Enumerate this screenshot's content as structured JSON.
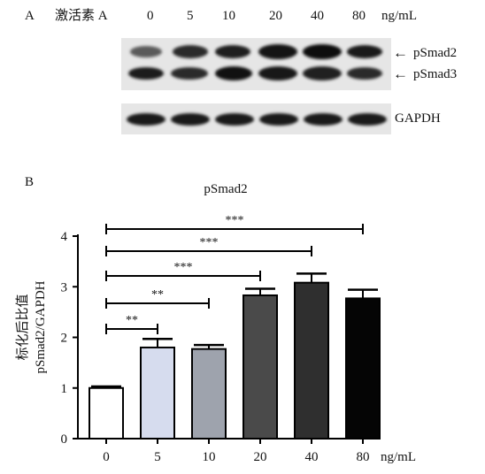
{
  "panel_a": {
    "label": "A",
    "treatment": "激活素 A",
    "conc_labels": [
      "0",
      "5",
      "10",
      "20",
      "40",
      "80"
    ],
    "unit": "ng/mL",
    "band_labels": {
      "top": "pSmad2",
      "middle": "pSmad3",
      "bottom": "GAPDH"
    },
    "arrow_glyph": "←"
  },
  "panel_b": {
    "label": "B"
  },
  "chart_data": {
    "type": "bar",
    "title": "pSmad2",
    "xlabel": "",
    "x_unit": "ng/mL",
    "ylabel_line1": "标化后比值",
    "ylabel_line2": "pSmad2/GAPDH",
    "categories": [
      "0",
      "5",
      "10",
      "20",
      "40",
      "80"
    ],
    "values": [
      1.0,
      1.8,
      1.77,
      2.83,
      3.08,
      2.77
    ],
    "errors": [
      0.03,
      0.17,
      0.08,
      0.13,
      0.18,
      0.17
    ],
    "bar_colors": [
      "#ffffff",
      "#d6dcee",
      "#9ea3ad",
      "#4a4a4a",
      "#2f2f2f",
      "#050505"
    ],
    "ylim": [
      0,
      4
    ],
    "yticks": [
      "0",
      "1",
      "2",
      "3",
      "4"
    ],
    "significance": [
      {
        "from": 0,
        "to": 1,
        "label": "**"
      },
      {
        "from": 0,
        "to": 2,
        "label": "**"
      },
      {
        "from": 0,
        "to": 3,
        "label": "***"
      },
      {
        "from": 0,
        "to": 4,
        "label": "***"
      },
      {
        "from": 0,
        "to": 5,
        "label": "***"
      }
    ]
  }
}
